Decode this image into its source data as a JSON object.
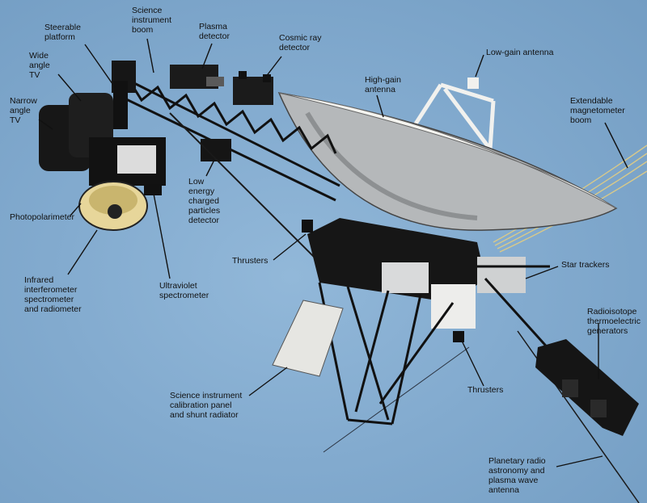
{
  "labels": {
    "steerable_platform": "Steerable\nplatform",
    "science_instrument_boom": "Science\ninstrument\nboom",
    "plasma_detector": "Plasma\ndetector",
    "cosmic_ray_detector": "Cosmic ray\ndetector",
    "low_gain_antenna": "Low-gain antenna",
    "high_gain_antenna": "High-gain\nantenna",
    "extendable_magnetometer_boom": "Extendable\nmagnetometer\nboom",
    "wide_angle_tv": "Wide\nangle\nTV",
    "narrow_angle_tv": "Narrow\nangle\nTV",
    "photopolarimeter": "Photopolarimeter",
    "low_energy_charged_particles_detector": "Low\nenergy\ncharged\nparticles\ndetector",
    "thrusters_upper": "Thrusters",
    "star_trackers": "Star trackers",
    "infrared_interferometer": "Infrared\ninterferometer\nspectrometer\nand radiometer",
    "ultraviolet_spectrometer": "Ultraviolet\nspectrometer",
    "radioisotope_generators": "Radioisotope\nthermoelectric\ngenerators",
    "thrusters_lower": "Thrusters",
    "calibration_panel": "Science instrument\ncalibration panel\nand shunt radiator",
    "planetary_radio_antenna": "Planetary radio\nastronomy and\nplasma wave\nantenna"
  }
}
